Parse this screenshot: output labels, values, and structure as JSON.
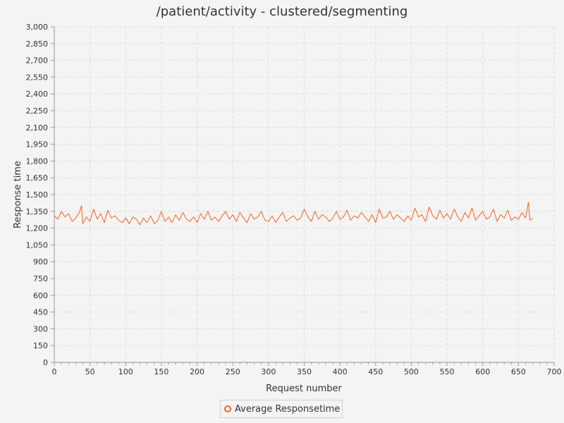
{
  "chart_data": {
    "type": "line",
    "title": "/patient/activity - clustered/segmenting",
    "xlabel": "Request number",
    "ylabel": "Response time",
    "xlim": [
      0,
      700
    ],
    "ylim": [
      0,
      3000
    ],
    "x_ticks": [
      0,
      50,
      100,
      150,
      200,
      250,
      300,
      350,
      400,
      450,
      500,
      550,
      600,
      650,
      700
    ],
    "y_ticks": [
      0,
      150,
      300,
      450,
      600,
      750,
      900,
      1050,
      1200,
      1350,
      1500,
      1650,
      1800,
      1950,
      2100,
      2250,
      2400,
      2550,
      2700,
      2850,
      3000
    ],
    "y_tick_labels": [
      "0",
      "150",
      "300",
      "450",
      "600",
      "750",
      "900",
      "1,050",
      "1,200",
      "1,350",
      "1,500",
      "1,650",
      "1,800",
      "1,950",
      "2,100",
      "2,250",
      "2,400",
      "2,550",
      "2,700",
      "2,850",
      "3,000"
    ],
    "grid": true,
    "legend": "bottom-center",
    "series": [
      {
        "name": "Average Responsetime",
        "color": "#f26522",
        "x": [
          0,
          5,
          10,
          15,
          20,
          25,
          30,
          35,
          38,
          40,
          45,
          50,
          55,
          60,
          65,
          70,
          75,
          80,
          85,
          90,
          95,
          100,
          105,
          110,
          115,
          120,
          125,
          130,
          135,
          140,
          145,
          150,
          155,
          160,
          165,
          170,
          175,
          180,
          185,
          190,
          195,
          200,
          205,
          210,
          215,
          220,
          225,
          230,
          235,
          240,
          245,
          250,
          255,
          260,
          265,
          270,
          275,
          280,
          285,
          290,
          295,
          300,
          305,
          310,
          315,
          320,
          325,
          330,
          335,
          340,
          345,
          350,
          355,
          360,
          365,
          370,
          375,
          380,
          385,
          390,
          395,
          400,
          405,
          410,
          415,
          420,
          425,
          430,
          435,
          440,
          445,
          450,
          455,
          460,
          465,
          470,
          475,
          480,
          485,
          490,
          495,
          500,
          505,
          510,
          515,
          520,
          525,
          530,
          535,
          540,
          545,
          550,
          555,
          560,
          565,
          570,
          575,
          580,
          585,
          590,
          595,
          600,
          605,
          610,
          615,
          620,
          625,
          630,
          635,
          640,
          645,
          650,
          655,
          660,
          664,
          666,
          670
        ],
        "values": [
          1310,
          1280,
          1350,
          1300,
          1330,
          1260,
          1290,
          1340,
          1400,
          1240,
          1300,
          1260,
          1370,
          1280,
          1330,
          1250,
          1360,
          1290,
          1310,
          1270,
          1250,
          1290,
          1240,
          1300,
          1280,
          1230,
          1290,
          1250,
          1310,
          1240,
          1270,
          1350,
          1260,
          1300,
          1250,
          1320,
          1270,
          1340,
          1280,
          1260,
          1300,
          1250,
          1330,
          1280,
          1350,
          1270,
          1300,
          1260,
          1310,
          1350,
          1280,
          1320,
          1260,
          1340,
          1290,
          1250,
          1330,
          1280,
          1300,
          1350,
          1270,
          1260,
          1310,
          1250,
          1300,
          1340,
          1260,
          1290,
          1310,
          1270,
          1290,
          1370,
          1300,
          1260,
          1350,
          1280,
          1320,
          1300,
          1260,
          1290,
          1350,
          1280,
          1300,
          1360,
          1270,
          1310,
          1290,
          1340,
          1300,
          1260,
          1320,
          1250,
          1370,
          1290,
          1300,
          1350,
          1280,
          1320,
          1290,
          1260,
          1310,
          1270,
          1380,
          1300,
          1320,
          1260,
          1390,
          1310,
          1280,
          1360,
          1290,
          1330,
          1280,
          1370,
          1300,
          1260,
          1340,
          1290,
          1380,
          1270,
          1310,
          1350,
          1280,
          1300,
          1370,
          1260,
          1320,
          1290,
          1360,
          1270,
          1300,
          1280,
          1340,
          1290,
          1430,
          1270,
          1290
        ]
      }
    ]
  }
}
